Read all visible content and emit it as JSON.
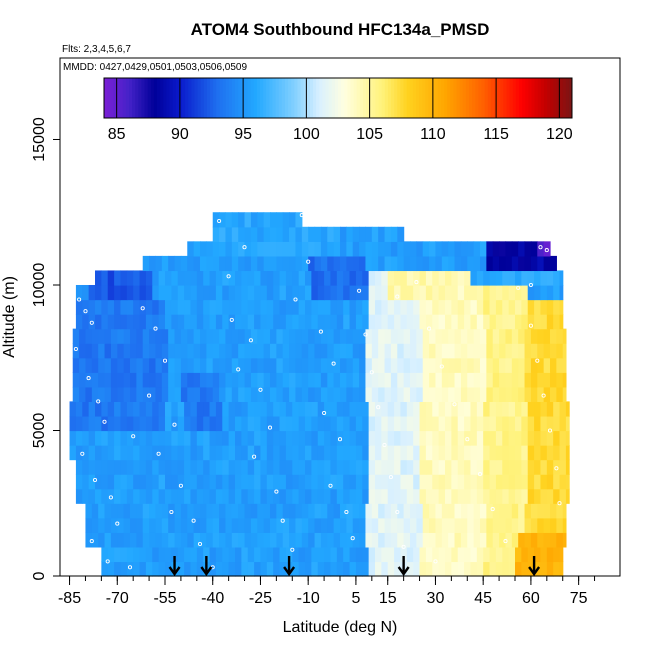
{
  "chart_data": {
    "type": "heatmap",
    "title": "ATOM4 Southbound HFC134a_PMSD",
    "flights_label": "Flts: 2,3,4,5,6,7",
    "dates_label": "MMDD: 0427,0429,0501,0503,0506,0509",
    "xlabel": "Latitude (deg N)",
    "ylabel": "Altitude (m)",
    "xlim": [
      -88,
      88
    ],
    "ylim": [
      0,
      17800
    ],
    "x_ticks": [
      -85,
      -70,
      -55,
      -40,
      -25,
      -10,
      5,
      15,
      30,
      45,
      60,
      75
    ],
    "y_ticks": [
      0,
      5000,
      10000,
      15000
    ],
    "colorbar": {
      "ticks": [
        85,
        90,
        95,
        100,
        105,
        110,
        115,
        120
      ],
      "range": [
        84,
        121
      ],
      "stops": [
        {
          "value": 84,
          "color": "#7b1fd6"
        },
        {
          "value": 86,
          "color": "#4422c8"
        },
        {
          "value": 88,
          "color": "#000099"
        },
        {
          "value": 90,
          "color": "#0a1acc"
        },
        {
          "value": 93,
          "color": "#1f70f0"
        },
        {
          "value": 96,
          "color": "#22a8ff"
        },
        {
          "value": 99,
          "color": "#80cfff"
        },
        {
          "value": 101,
          "color": "#d8f0ff"
        },
        {
          "value": 103,
          "color": "#ffffe0"
        },
        {
          "value": 106,
          "color": "#fff27a"
        },
        {
          "value": 108,
          "color": "#ffd21f"
        },
        {
          "value": 111,
          "color": "#ffa500"
        },
        {
          "value": 114,
          "color": "#ff6000"
        },
        {
          "value": 117,
          "color": "#ff0000"
        },
        {
          "value": 119,
          "color": "#c00000"
        },
        {
          "value": 121,
          "color": "#7a1515"
        }
      ]
    },
    "field": {
      "base_value": 95.5,
      "southern_edge_lat": [
        -84,
        -81,
        -77,
        -74,
        -74
      ],
      "rows": [
        {
          "alt_bottom": 0,
          "alt_top": 1000,
          "lat_start": -75,
          "lat_end": 70
        },
        {
          "alt_bottom": 1000,
          "alt_top": 2500,
          "lat_start": -80,
          "lat_end": 71
        },
        {
          "alt_bottom": 2500,
          "alt_top": 4000,
          "lat_start": -83,
          "lat_end": 72
        },
        {
          "alt_bottom": 4000,
          "alt_top": 6000,
          "lat_start": -85,
          "lat_end": 72
        },
        {
          "alt_bottom": 6000,
          "alt_top": 8500,
          "lat_start": -84,
          "lat_end": 71
        },
        {
          "alt_bottom": 8500,
          "alt_top": 10000,
          "lat_start": -83,
          "lat_end": 70
        },
        {
          "alt_bottom": 10000,
          "alt_top": 10500,
          "lat_start": -77,
          "lat_end": 70
        },
        {
          "alt_bottom": 10500,
          "alt_top": 11000,
          "lat_start": -62,
          "lat_end": 68
        },
        {
          "alt_bottom": 11000,
          "alt_top": 11500,
          "lat_start": -48,
          "lat_end": 66
        },
        {
          "alt_bottom": 11500,
          "alt_top": 12000,
          "lat_start": -40,
          "lat_end": 20
        },
        {
          "alt_bottom": 12000,
          "alt_top": 12500,
          "lat_start": -40,
          "lat_end": -12
        }
      ],
      "features": [
        {
          "lat_from": 8,
          "lat_to": 25,
          "alt_from": 0,
          "alt_to": 10400,
          "value": 101.5
        },
        {
          "lat_from": 25,
          "lat_to": 45,
          "alt_from": 0,
          "alt_to": 10200,
          "value": 104.0
        },
        {
          "lat_from": 45,
          "lat_to": 58,
          "alt_from": 0,
          "alt_to": 10000,
          "value": 105.5
        },
        {
          "lat_from": 58,
          "lat_to": 72,
          "alt_from": 0,
          "alt_to": 9500,
          "value": 107.5
        },
        {
          "lat_from": 55,
          "lat_to": 72,
          "alt_from": 0,
          "alt_to": 1200,
          "value": 110.0
        },
        {
          "lat_from": 15,
          "lat_to": 35,
          "alt_from": 9500,
          "alt_to": 10500,
          "value": 104.5
        },
        {
          "lat_from": 40,
          "lat_to": 70,
          "alt_from": 10000,
          "alt_to": 10500,
          "value": 96.0
        },
        {
          "lat_from": 45,
          "lat_to": 70,
          "alt_from": 10500,
          "alt_to": 11500,
          "value": 88.5
        },
        {
          "lat_from": 62,
          "lat_to": 68,
          "alt_from": 11000,
          "alt_to": 11500,
          "value": 85.5
        },
        {
          "lat_from": -85,
          "lat_to": -55,
          "alt_from": 5000,
          "alt_to": 9500,
          "value": 93.5
        },
        {
          "lat_from": -80,
          "lat_to": -60,
          "alt_from": 9500,
          "alt_to": 10500,
          "value": 92.0
        },
        {
          "lat_from": -50,
          "lat_to": -38,
          "alt_from": 5000,
          "alt_to": 7000,
          "value": 93.5
        },
        {
          "lat_from": -10,
          "lat_to": 8,
          "alt_from": 9500,
          "alt_to": 11000,
          "value": 93.0
        },
        {
          "lat_from": -40,
          "lat_to": 0,
          "alt_from": 11000,
          "alt_to": 12500,
          "value": 96.0
        }
      ]
    },
    "sample_points": [
      [
        -82,
        9500
      ],
      [
        -80,
        9100
      ],
      [
        -78,
        8700
      ],
      [
        -83,
        7800
      ],
      [
        -79,
        6800
      ],
      [
        -76,
        6000
      ],
      [
        -74,
        5300
      ],
      [
        -81,
        4200
      ],
      [
        -77,
        3300
      ],
      [
        -72,
        2700
      ],
      [
        -70,
        1800
      ],
      [
        -78,
        1200
      ],
      [
        -73,
        500
      ],
      [
        -66,
        300
      ],
      [
        -62,
        9200
      ],
      [
        -58,
        8500
      ],
      [
        -55,
        7400
      ],
      [
        -60,
        6200
      ],
      [
        -52,
        5200
      ],
      [
        -57,
        4200
      ],
      [
        -50,
        3100
      ],
      [
        -46,
        1900
      ],
      [
        -44,
        1100
      ],
      [
        -40,
        300
      ],
      [
        -53,
        2200
      ],
      [
        -65,
        4800
      ],
      [
        -38,
        12200
      ],
      [
        -30,
        11300
      ],
      [
        -35,
        10300
      ],
      [
        -34,
        8800
      ],
      [
        -28,
        8100
      ],
      [
        -32,
        7100
      ],
      [
        -25,
        6400
      ],
      [
        -22,
        5100
      ],
      [
        -27,
        4100
      ],
      [
        -20,
        2900
      ],
      [
        -18,
        1900
      ],
      [
        -15,
        900
      ],
      [
        -12,
        12400
      ],
      [
        -8,
        12100
      ],
      [
        -10,
        10800
      ],
      [
        -14,
        9500
      ],
      [
        -6,
        8400
      ],
      [
        -2,
        7300
      ],
      [
        -5,
        5600
      ],
      [
        0,
        4700
      ],
      [
        -3,
        3100
      ],
      [
        2,
        2200
      ],
      [
        4,
        1300
      ],
      [
        6,
        9800
      ],
      [
        8,
        8300
      ],
      [
        10,
        7000
      ],
      [
        12,
        5800
      ],
      [
        14,
        4500
      ],
      [
        16,
        3400
      ],
      [
        18,
        2200
      ],
      [
        20,
        1000
      ],
      [
        18,
        9600
      ],
      [
        24,
        10100
      ],
      [
        28,
        8500
      ],
      [
        32,
        7200
      ],
      [
        36,
        5900
      ],
      [
        40,
        4700
      ],
      [
        44,
        3500
      ],
      [
        48,
        2300
      ],
      [
        52,
        1200
      ],
      [
        30,
        500
      ],
      [
        56,
        9900
      ],
      [
        60,
        8600
      ],
      [
        62,
        7400
      ],
      [
        64,
        6200
      ],
      [
        66,
        5000
      ],
      [
        68,
        3700
      ],
      [
        69,
        2500
      ],
      [
        63,
        11300
      ],
      [
        65,
        11200
      ],
      [
        60,
        10000
      ]
    ],
    "arrows_lat": [
      -52,
      -42,
      -16,
      20,
      61
    ]
  }
}
